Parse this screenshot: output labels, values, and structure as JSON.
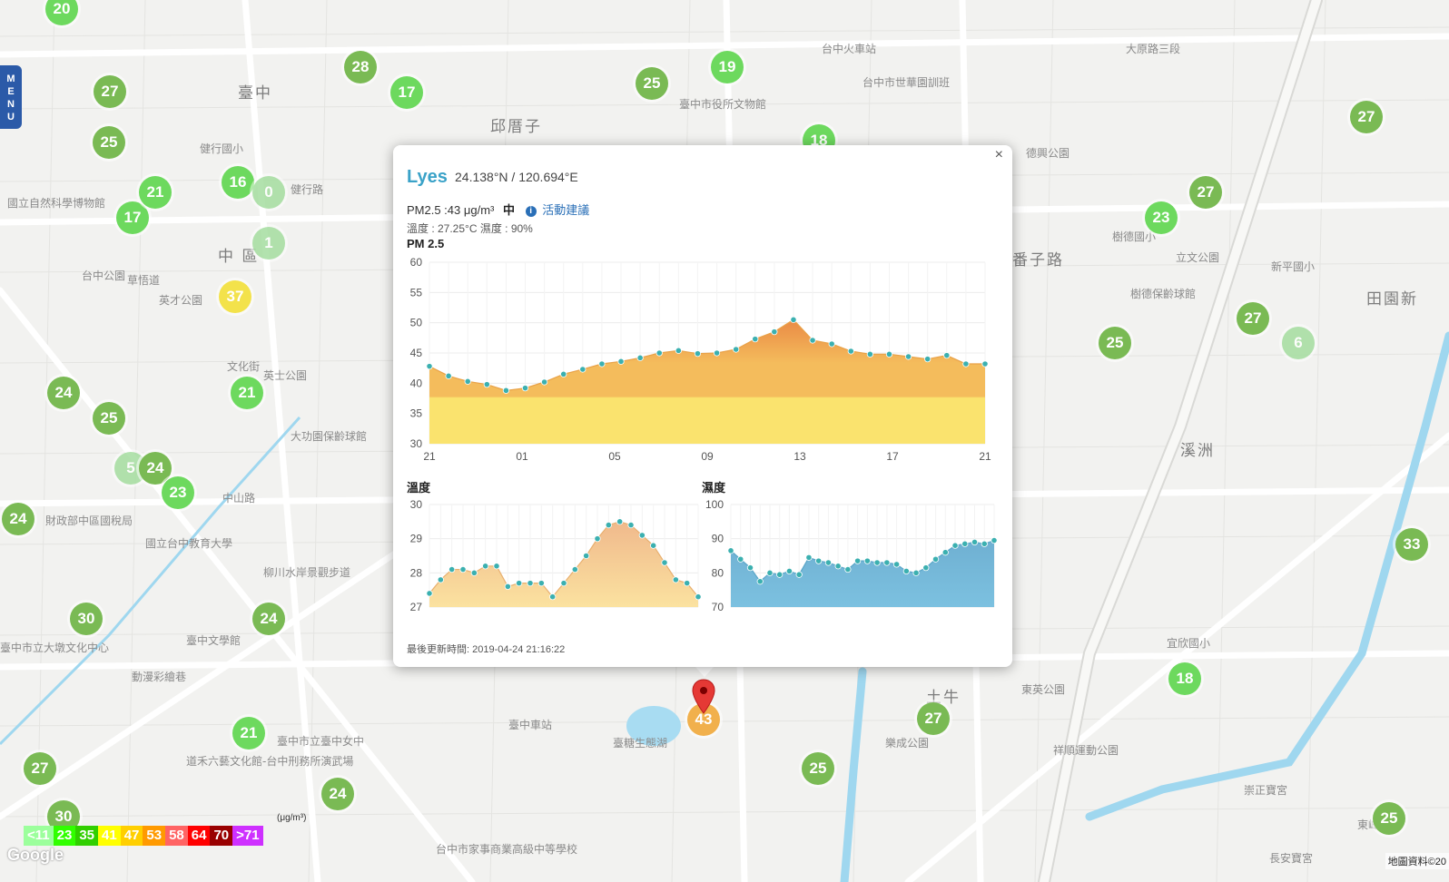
{
  "map": {
    "labels": [
      {
        "text": "臺中",
        "big": true
      },
      {
        "text": "中 區",
        "big": true
      },
      {
        "text": "邱厝子",
        "big": true
      },
      {
        "text": "番子路",
        "big": true
      },
      {
        "text": "溪洲",
        "big": true
      },
      {
        "text": "土牛",
        "big": true
      },
      {
        "text": "田園新",
        "big": true
      },
      {
        "text": "國立自然科學博物館",
        "big": false
      },
      {
        "text": "台中火車站",
        "big": false
      },
      {
        "text": "臺中車站",
        "big": false
      },
      {
        "text": "台中市世華園訓班",
        "big": false
      },
      {
        "text": "德興公園",
        "big": false
      },
      {
        "text": "樹德保齡球館",
        "big": false
      },
      {
        "text": "立文公園",
        "big": false
      },
      {
        "text": "新平國小",
        "big": false
      },
      {
        "text": "大功園保齡球館",
        "big": false
      },
      {
        "text": "柳川水岸景觀步道",
        "big": false
      },
      {
        "text": "臺中文學館",
        "big": false
      },
      {
        "text": "動漫彩繪巷",
        "big": false
      },
      {
        "text": "國立台中教育大學",
        "big": false
      },
      {
        "text": "臺糖生態湖",
        "big": false
      },
      {
        "text": "樂成公園",
        "big": false
      },
      {
        "text": "東英公園",
        "big": false
      },
      {
        "text": "祥順運動公園",
        "big": false
      },
      {
        "text": "崇正寶宮",
        "big": false
      },
      {
        "text": "東峰公園",
        "big": false
      },
      {
        "text": "長安寶宮",
        "big": false
      },
      {
        "text": "草悟道",
        "big": false
      },
      {
        "text": "英才公園",
        "big": false
      },
      {
        "text": "健行國小",
        "big": false
      },
      {
        "text": "臺中市役所文物館",
        "big": false
      },
      {
        "text": "大原路三段",
        "big": false
      },
      {
        "text": "財政部中區國稅局",
        "big": false
      },
      {
        "text": "臺中市立大墩文化中心",
        "big": false
      },
      {
        "text": "道禾六藝文化館-台中刑務所演武場",
        "big": false
      },
      {
        "text": "宜欣國小",
        "big": false
      },
      {
        "text": "中山路",
        "big": false
      },
      {
        "text": "健行路",
        "big": false
      },
      {
        "text": "樹德國小",
        "big": false
      },
      {
        "text": "台中公園",
        "big": false
      },
      {
        "text": "英士公園",
        "big": false
      },
      {
        "text": "文化街",
        "big": false
      },
      {
        "text": "臺中市立臺中女中",
        "big": false
      },
      {
        "text": "台中市家事商業高級中等學校",
        "big": false
      }
    ],
    "markers": [
      {
        "v": "20"
      },
      {
        "v": "27"
      },
      {
        "v": "25"
      },
      {
        "v": "28"
      },
      {
        "v": "17"
      },
      {
        "v": "25"
      },
      {
        "v": "19"
      },
      {
        "v": "18"
      },
      {
        "v": "17"
      },
      {
        "v": "21"
      },
      {
        "v": "16"
      },
      {
        "v": "0"
      },
      {
        "v": "1"
      },
      {
        "v": "37"
      },
      {
        "v": "21"
      },
      {
        "v": "24"
      },
      {
        "v": "25"
      },
      {
        "v": "5"
      },
      {
        "v": "24"
      },
      {
        "v": "23"
      },
      {
        "v": "24"
      },
      {
        "v": "30"
      },
      {
        "v": "24"
      },
      {
        "v": "21"
      },
      {
        "v": "27"
      },
      {
        "v": "24"
      },
      {
        "v": "30"
      },
      {
        "v": "27"
      },
      {
        "v": "23"
      },
      {
        "v": "27"
      },
      {
        "v": "25"
      },
      {
        "v": "6"
      },
      {
        "v": "27"
      },
      {
        "v": "33"
      },
      {
        "v": "25"
      },
      {
        "v": "27"
      },
      {
        "v": "25"
      },
      {
        "v": "18"
      },
      {
        "v": "43"
      }
    ],
    "attribution": "地圖資料©20"
  },
  "menu_label": "MENU",
  "popup": {
    "site_name": "Lyes",
    "coords": "24.138°N / 120.694°E",
    "close_label": "×",
    "pm_text": "PM2.5 :43 μg/m³",
    "pm_level": "中",
    "advice_icon": "i",
    "advice_label": "活動建議",
    "meta": "溫度 : 27.25°C 濕度 : 90%",
    "updated": "最後更新時間: 2019-04-24 21:16:22"
  },
  "legend": {
    "unit": "(μg/m³)",
    "items": [
      {
        "label": "<11",
        "color": "#9cff9c"
      },
      {
        "label": "23",
        "color": "#31ff00"
      },
      {
        "label": "35",
        "color": "#31cf00"
      },
      {
        "label": "41",
        "color": "#ffff00"
      },
      {
        "label": "47",
        "color": "#ffcf00"
      },
      {
        "label": "53",
        "color": "#ff9a00"
      },
      {
        "label": "58",
        "color": "#ff6464"
      },
      {
        "label": "64",
        "color": "#ff0000"
      },
      {
        "label": "70",
        "color": "#990000"
      },
      {
        "label": ">71",
        "color": "#ce30ff"
      }
    ]
  },
  "google_label": "Google",
  "chart_data": [
    {
      "type": "area",
      "title": "PM 2.5",
      "ylim": [
        30,
        60
      ],
      "yticks": [
        "60",
        "55",
        "50",
        "45",
        "40",
        "35",
        "30"
      ],
      "xticks": [
        "21",
        "01",
        "05",
        "09",
        "13",
        "17",
        "21"
      ],
      "values": [
        42.8,
        41.2,
        40.3,
        39.8,
        38.8,
        39.2,
        40.2,
        41.5,
        42.3,
        43.2,
        43.6,
        44.2,
        45.0,
        45.4,
        44.9,
        45.0,
        45.6,
        47.3,
        48.5,
        50.5,
        47.1,
        46.5,
        45.3,
        44.8,
        44.8,
        44.4,
        44.0,
        44.6,
        43.2,
        43.2
      ],
      "fill_colors": [
        "#fae36e",
        "#f4bc5c",
        "#ea8a45"
      ]
    },
    {
      "type": "area",
      "title": "溫度",
      "ylim": [
        27,
        30
      ],
      "yticks": [
        "30",
        "29",
        "28",
        "27"
      ],
      "values": [
        27.4,
        27.8,
        28.1,
        28.1,
        28.0,
        28.2,
        28.2,
        27.6,
        27.7,
        27.7,
        27.7,
        27.3,
        27.7,
        28.1,
        28.5,
        29.0,
        29.4,
        29.5,
        29.4,
        29.1,
        28.8,
        28.3,
        27.8,
        27.7,
        27.3
      ],
      "fill_colors": [
        "#fbe2a0",
        "#f0b98c"
      ]
    },
    {
      "type": "area",
      "title": "濕度",
      "ylim": [
        70,
        100
      ],
      "yticks": [
        "100",
        "90",
        "80",
        "70"
      ],
      "values": [
        86.5,
        84.0,
        81.5,
        77.5,
        80.0,
        79.5,
        80.5,
        79.5,
        84.5,
        83.5,
        83.0,
        82.0,
        81.0,
        83.5,
        83.5,
        83.0,
        83.0,
        82.5,
        80.5,
        80.0,
        81.5,
        84.0,
        86.0,
        88.0,
        88.5,
        89.0,
        88.5,
        89.5
      ],
      "fill_colors": [
        "#7cc1e0",
        "#6fb0d2"
      ]
    }
  ]
}
